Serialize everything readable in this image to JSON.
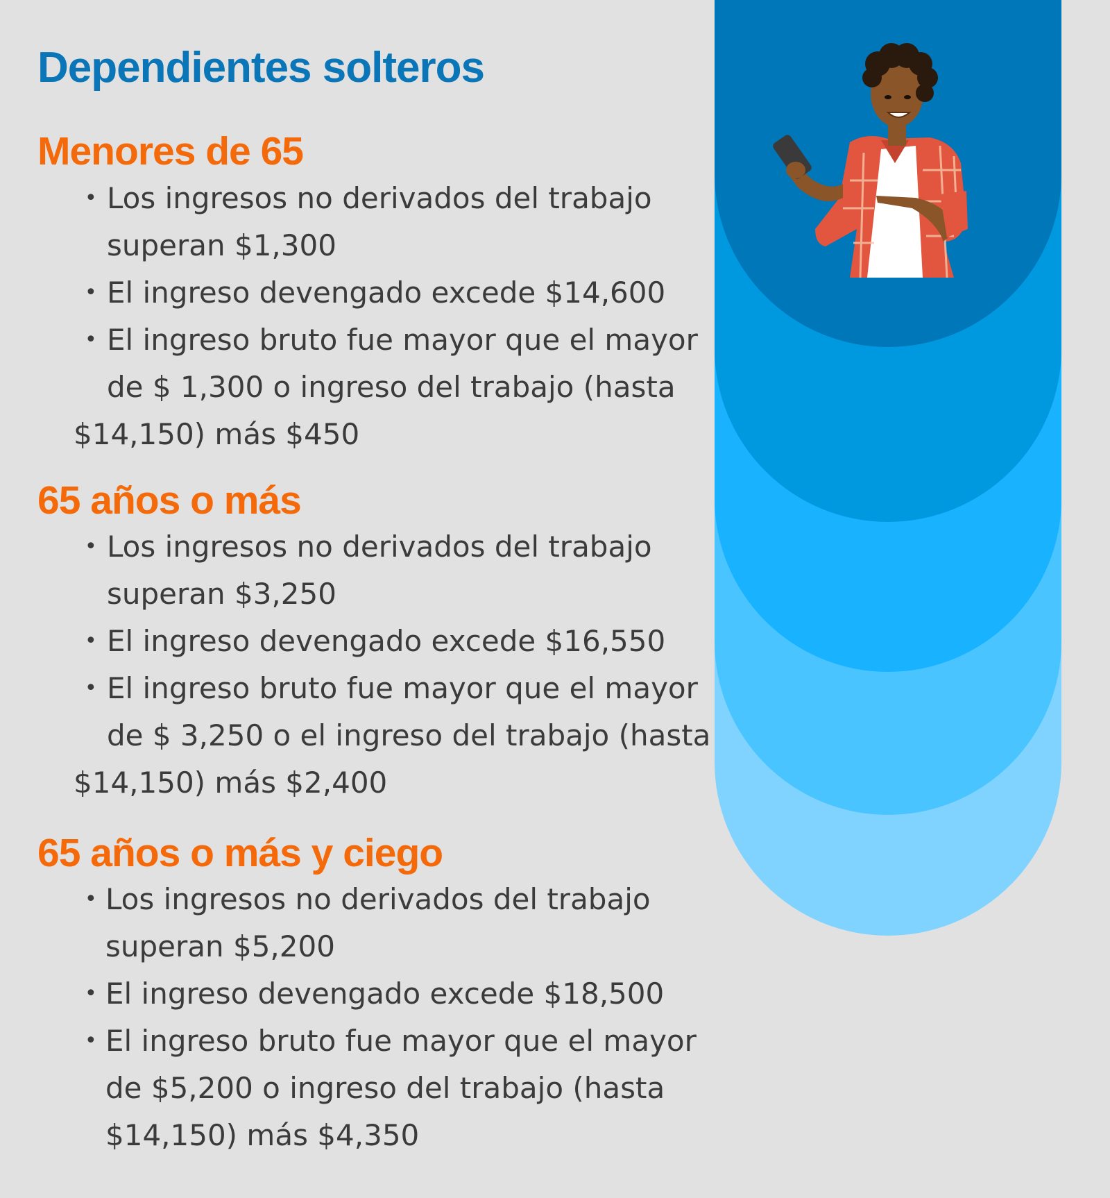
{
  "title": "Dependientes solteros",
  "bullet_char": "•",
  "illustration": {
    "icon": "person-holding-phone-icon",
    "colors": {
      "shirt": "#e2553f",
      "skin": "#8a5528",
      "hair": "#2a1a0e",
      "tee": "#ffffff",
      "phone": "#3a3a3a"
    }
  },
  "colors": {
    "title": "#0a76b7",
    "section": "#f46a0a",
    "text": "#3b3b3b",
    "background": "#e1e1e1",
    "arches": [
      "#0077b8",
      "#0099e0",
      "#19b2ff",
      "#4ac4ff",
      "#80d3ff"
    ]
  },
  "sections": [
    {
      "heading": "Menores de 65",
      "items": [
        {
          "lines": [
            "Los ingresos no derivados del trabajo",
            "superan $1,300"
          ]
        },
        {
          "lines": [
            "El ingreso devengado excede $14,600"
          ]
        },
        {
          "lines": [
            "El ingreso bruto fue mayor que el mayor",
            "de $ 1,300 o ingreso del trabajo (hasta",
            "$14,150) más $450"
          ]
        }
      ]
    },
    {
      "heading": "65 años o más",
      "items": [
        {
          "lines": [
            "Los ingresos no derivados del trabajo",
            "superan $3,250"
          ]
        },
        {
          "lines": [
            "El ingreso devengado excede $16,550"
          ]
        },
        {
          "lines": [
            "El ingreso bruto fue mayor que el mayor",
            "de $ 3,250 o el ingreso del trabajo (hasta",
            "$14,150) más $2,400"
          ]
        }
      ]
    },
    {
      "heading": "65 años o más y ciego",
      "items": [
        {
          "lines": [
            "Los ingresos no derivados del trabajo",
            "superan $5,200"
          ]
        },
        {
          "lines": [
            "El ingreso devengado excede $18,500"
          ]
        },
        {
          "lines": [
            "El ingreso bruto fue mayor que el mayor",
            "de $5,200 o ingreso del trabajo (hasta",
            "$14,150) más $4,350"
          ]
        }
      ]
    }
  ]
}
